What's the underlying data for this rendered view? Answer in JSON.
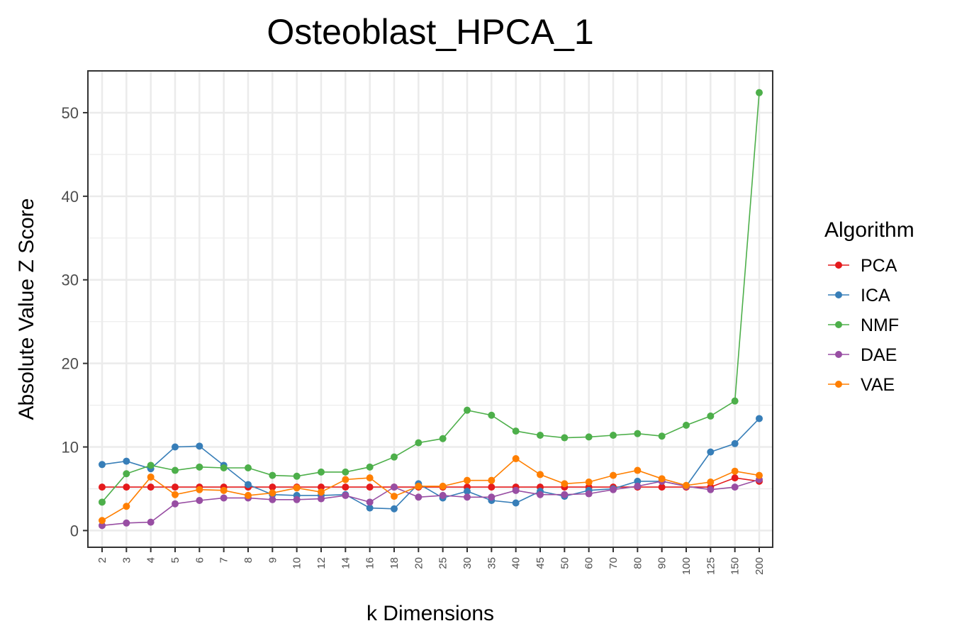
{
  "chart_data": {
    "type": "line",
    "title": "Osteoblast_HPCA_1",
    "xlabel": "k Dimensions",
    "ylabel": "Absolute Value Z Score",
    "categories": [
      "2",
      "3",
      "4",
      "5",
      "6",
      "7",
      "8",
      "9",
      "10",
      "12",
      "14",
      "16",
      "18",
      "20",
      "25",
      "30",
      "35",
      "40",
      "45",
      "50",
      "60",
      "70",
      "80",
      "90",
      "100",
      "125",
      "150",
      "200"
    ],
    "ylim": [
      -2,
      55
    ],
    "yticks": [
      0,
      10,
      20,
      30,
      40,
      50
    ],
    "grid": true,
    "legend": {
      "title": "Algorithm",
      "position": "right"
    },
    "series": [
      {
        "name": "PCA",
        "color": "#E41A1C",
        "values": [
          5.2,
          5.2,
          5.2,
          5.2,
          5.2,
          5.2,
          5.2,
          5.2,
          5.2,
          5.2,
          5.2,
          5.2,
          5.2,
          5.2,
          5.2,
          5.2,
          5.2,
          5.2,
          5.2,
          5.2,
          5.2,
          5.2,
          5.2,
          5.2,
          5.2,
          5.2,
          6.3,
          5.9
        ]
      },
      {
        "name": "ICA",
        "color": "#377EB8",
        "values": [
          7.9,
          8.3,
          7.4,
          10.0,
          10.1,
          7.8,
          5.5,
          4.3,
          4.2,
          4.2,
          4.3,
          2.7,
          2.6,
          5.6,
          3.9,
          4.7,
          3.6,
          3.3,
          4.7,
          4.1,
          4.8,
          5.0,
          5.9,
          5.9,
          5.3,
          9.4,
          10.4,
          13.4
        ]
      },
      {
        "name": "NMF",
        "color": "#4DAF4A",
        "values": [
          3.4,
          6.8,
          7.8,
          7.2,
          7.6,
          7.5,
          7.5,
          6.6,
          6.5,
          7.0,
          7.0,
          7.6,
          8.8,
          10.5,
          11.0,
          14.4,
          13.8,
          11.9,
          11.4,
          11.1,
          11.2,
          11.4,
          11.6,
          11.3,
          12.6,
          13.7,
          15.5,
          52.4
        ]
      },
      {
        "name": "DAE",
        "color": "#984EA3",
        "values": [
          0.6,
          0.9,
          1.0,
          3.2,
          3.6,
          3.9,
          3.9,
          3.7,
          3.7,
          3.8,
          4.2,
          3.4,
          5.2,
          4.0,
          4.2,
          4.0,
          4.0,
          4.8,
          4.3,
          4.3,
          4.4,
          4.9,
          5.3,
          5.9,
          5.3,
          4.9,
          5.2,
          6.1
        ]
      },
      {
        "name": "VAE",
        "color": "#FF7F00",
        "values": [
          1.2,
          2.9,
          6.4,
          4.3,
          4.9,
          4.8,
          4.2,
          4.5,
          5.1,
          4.6,
          6.1,
          6.3,
          4.1,
          5.3,
          5.3,
          6.0,
          6.0,
          8.6,
          6.7,
          5.6,
          5.8,
          6.6,
          7.2,
          6.2,
          5.4,
          5.8,
          7.1,
          6.6
        ]
      }
    ]
  }
}
